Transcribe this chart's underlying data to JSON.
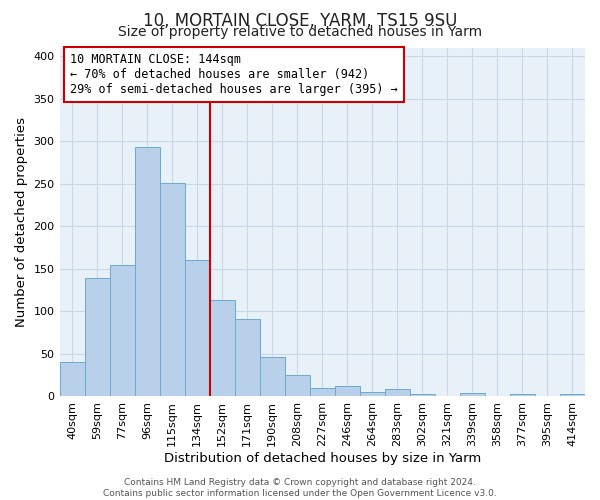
{
  "title": "10, MORTAIN CLOSE, YARM, TS15 9SU",
  "subtitle": "Size of property relative to detached houses in Yarm",
  "xlabel": "Distribution of detached houses by size in Yarm",
  "ylabel": "Number of detached properties",
  "bar_labels": [
    "40sqm",
    "59sqm",
    "77sqm",
    "96sqm",
    "115sqm",
    "134sqm",
    "152sqm",
    "171sqm",
    "190sqm",
    "208sqm",
    "227sqm",
    "246sqm",
    "264sqm",
    "283sqm",
    "302sqm",
    "321sqm",
    "339sqm",
    "358sqm",
    "377sqm",
    "395sqm",
    "414sqm"
  ],
  "bar_values": [
    40,
    139,
    155,
    293,
    251,
    160,
    113,
    91,
    46,
    25,
    10,
    12,
    5,
    9,
    3,
    1,
    4,
    1,
    3,
    1,
    3
  ],
  "bar_color": "#b8d0ea",
  "bar_edge_color": "#6aabd2",
  "grid_color": "#c8d8ea",
  "background_color": "#ffffff",
  "plot_bg_color": "#e8f0f8",
  "annotation_text": "10 MORTAIN CLOSE: 144sqm\n← 70% of detached houses are smaller (942)\n29% of semi-detached houses are larger (395) →",
  "annotation_box_color": "#ffffff",
  "annotation_box_edge": "#cc0000",
  "vline_color": "#cc0000",
  "vline_index": 6,
  "ylim": [
    0,
    410
  ],
  "yticks": [
    0,
    50,
    100,
    150,
    200,
    250,
    300,
    350,
    400
  ],
  "footer": "Contains HM Land Registry data © Crown copyright and database right 2024.\nContains public sector information licensed under the Open Government Licence v3.0.",
  "title_fontsize": 12,
  "subtitle_fontsize": 10,
  "axis_label_fontsize": 9.5,
  "tick_fontsize": 8,
  "annotation_fontsize": 8.5,
  "footer_fontsize": 6.5
}
